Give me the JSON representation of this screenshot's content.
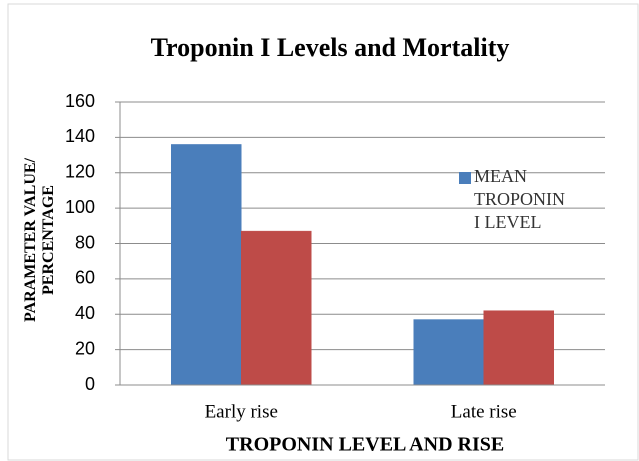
{
  "chart_data": {
    "type": "bar",
    "title": "Troponin I  Levels and Mortality",
    "ylabel": "PARAMETER VALUE/ PERCENTAGE",
    "xlabel": "TROPONIN LEVEL  AND  RISE",
    "categories": [
      "Early rise",
      "Late rise"
    ],
    "series": [
      {
        "name": "MEAN TROPONIN I LEVEL",
        "color": "#4a7ebb",
        "values": [
          136,
          37
        ]
      },
      {
        "color": "#be4b48",
        "values": [
          87,
          42
        ]
      }
    ],
    "ylim": [
      0,
      160
    ],
    "yticks": [
      0,
      20,
      40,
      60,
      80,
      100,
      120,
      140,
      160
    ],
    "grid": true,
    "legend": "right"
  }
}
